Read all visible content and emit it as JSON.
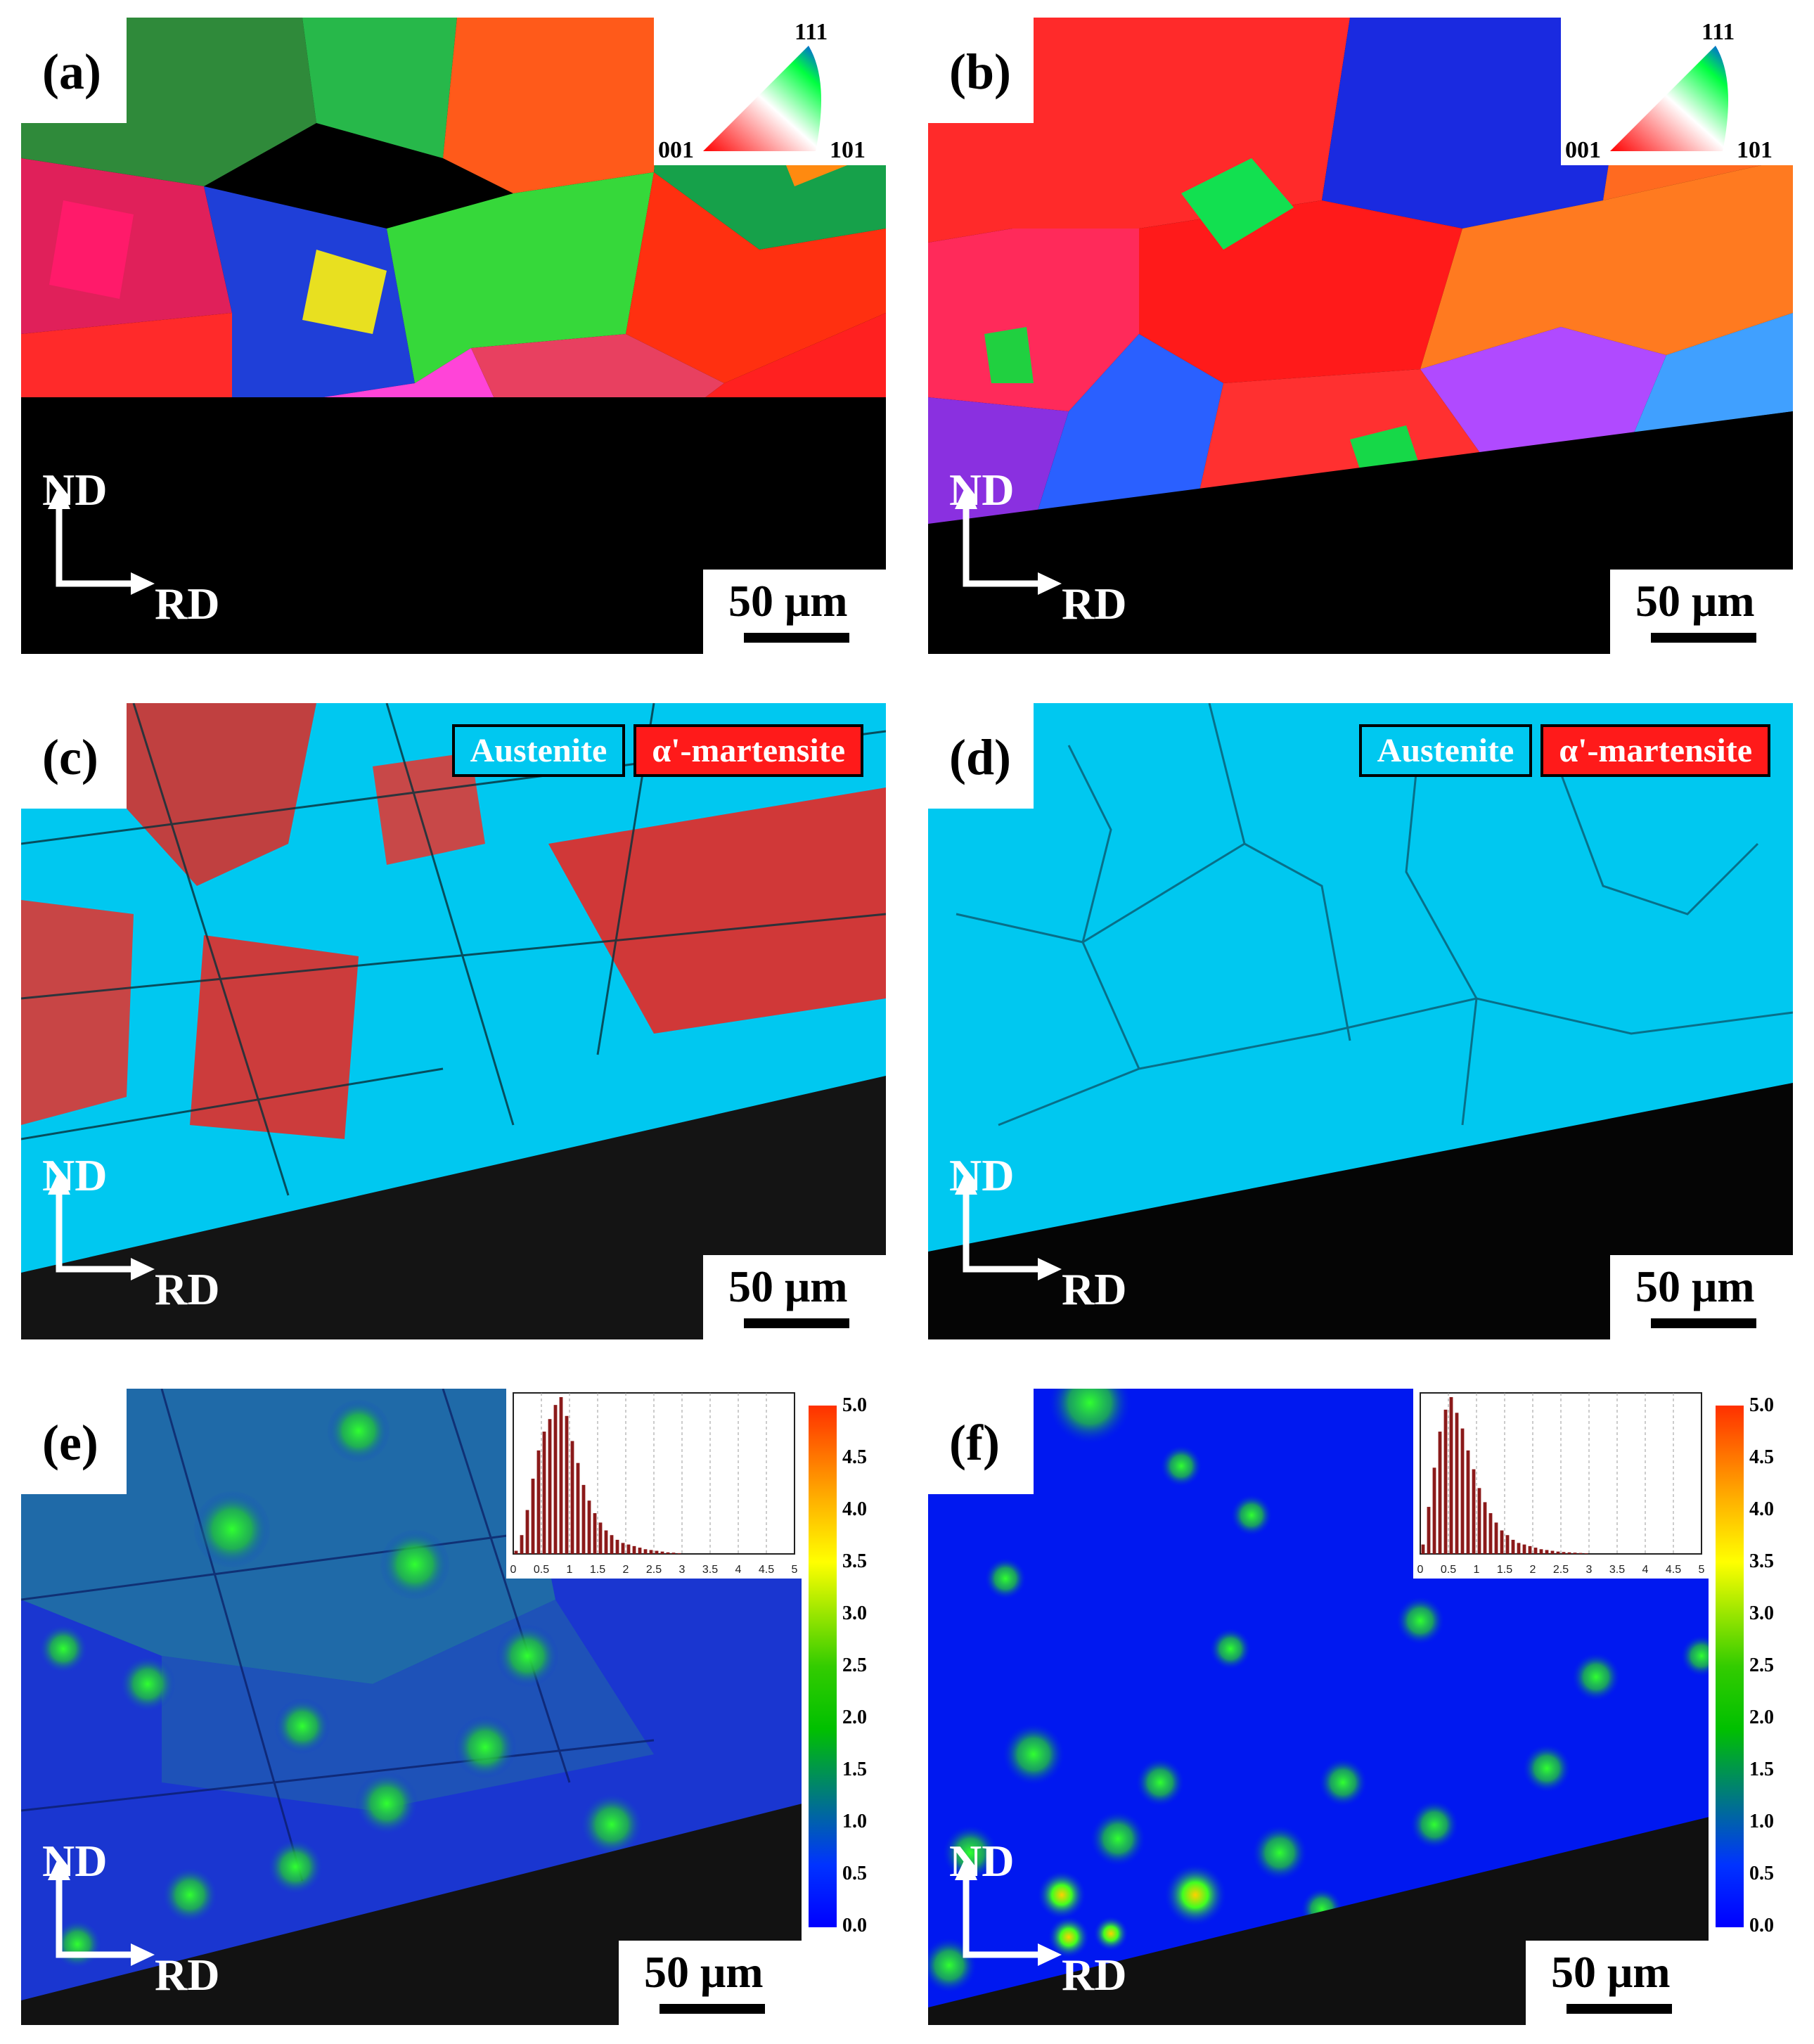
{
  "panels": {
    "a": {
      "label": "(a)"
    },
    "b": {
      "label": "(b)"
    },
    "c": {
      "label": "(c)"
    },
    "d": {
      "label": "(d)"
    },
    "e": {
      "label": "(e)"
    },
    "f": {
      "label": "(f)"
    }
  },
  "axes": {
    "nd": "ND",
    "rd": "RD"
  },
  "scale_bar": {
    "text": "50 μm"
  },
  "ipf_legend": {
    "top": "111",
    "left": "001",
    "right": "101"
  },
  "phase_legend": {
    "austenite": {
      "label": "Austenite",
      "color": "#00c8f0"
    },
    "martensite": {
      "label": "α'-martensite",
      "color": "#ff1a1a"
    }
  },
  "kam_colorbar": {
    "ticks": [
      "5.0",
      "4.5",
      "4.0",
      "3.5",
      "3.0",
      "2.5",
      "2.0",
      "1.5",
      "1.0",
      "0.5",
      "0.0"
    ]
  },
  "chart_data": [
    {
      "type": "bar",
      "panel": "e",
      "xlim": [
        0,
        5
      ],
      "xticks": [
        "0",
        "0.5",
        "1",
        "1.5",
        "2",
        "2.5",
        "3",
        "3.5",
        "4",
        "4.5",
        "5"
      ],
      "x": [
        0.05,
        0.15,
        0.25,
        0.35,
        0.45,
        0.55,
        0.65,
        0.75,
        0.85,
        0.95,
        1.05,
        1.15,
        1.25,
        1.35,
        1.45,
        1.55,
        1.65,
        1.75,
        1.85,
        1.95,
        2.05,
        2.15,
        2.25,
        2.35,
        2.45,
        2.55,
        2.65,
        2.75,
        2.85,
        2.95
      ],
      "values": [
        2,
        12,
        28,
        48,
        66,
        78,
        86,
        95,
        100,
        88,
        72,
        58,
        44,
        34,
        26,
        20,
        15,
        12,
        9,
        7,
        6,
        5,
        4,
        3,
        2.5,
        2,
        1.5,
        1,
        0.8,
        0.5
      ]
    },
    {
      "type": "bar",
      "panel": "f",
      "xlim": [
        0,
        5
      ],
      "xticks": [
        "0",
        "0.5",
        "1",
        "1.5",
        "2",
        "2.5",
        "3",
        "3.5",
        "4",
        "4.5",
        "5"
      ],
      "x": [
        0.05,
        0.15,
        0.25,
        0.35,
        0.45,
        0.55,
        0.65,
        0.75,
        0.85,
        0.95,
        1.05,
        1.15,
        1.25,
        1.35,
        1.45,
        1.55,
        1.65,
        1.75,
        1.85,
        1.95,
        2.05,
        2.15,
        2.25,
        2.35,
        2.45,
        2.55,
        2.65,
        2.75,
        2.85,
        2.95
      ],
      "values": [
        6,
        30,
        55,
        78,
        92,
        100,
        90,
        80,
        66,
        54,
        42,
        33,
        26,
        20,
        15,
        12,
        9,
        7,
        6,
        5,
        4,
        3,
        2.5,
        2,
        1.5,
        1.2,
        1,
        0.8,
        0.6,
        0.4
      ]
    }
  ]
}
